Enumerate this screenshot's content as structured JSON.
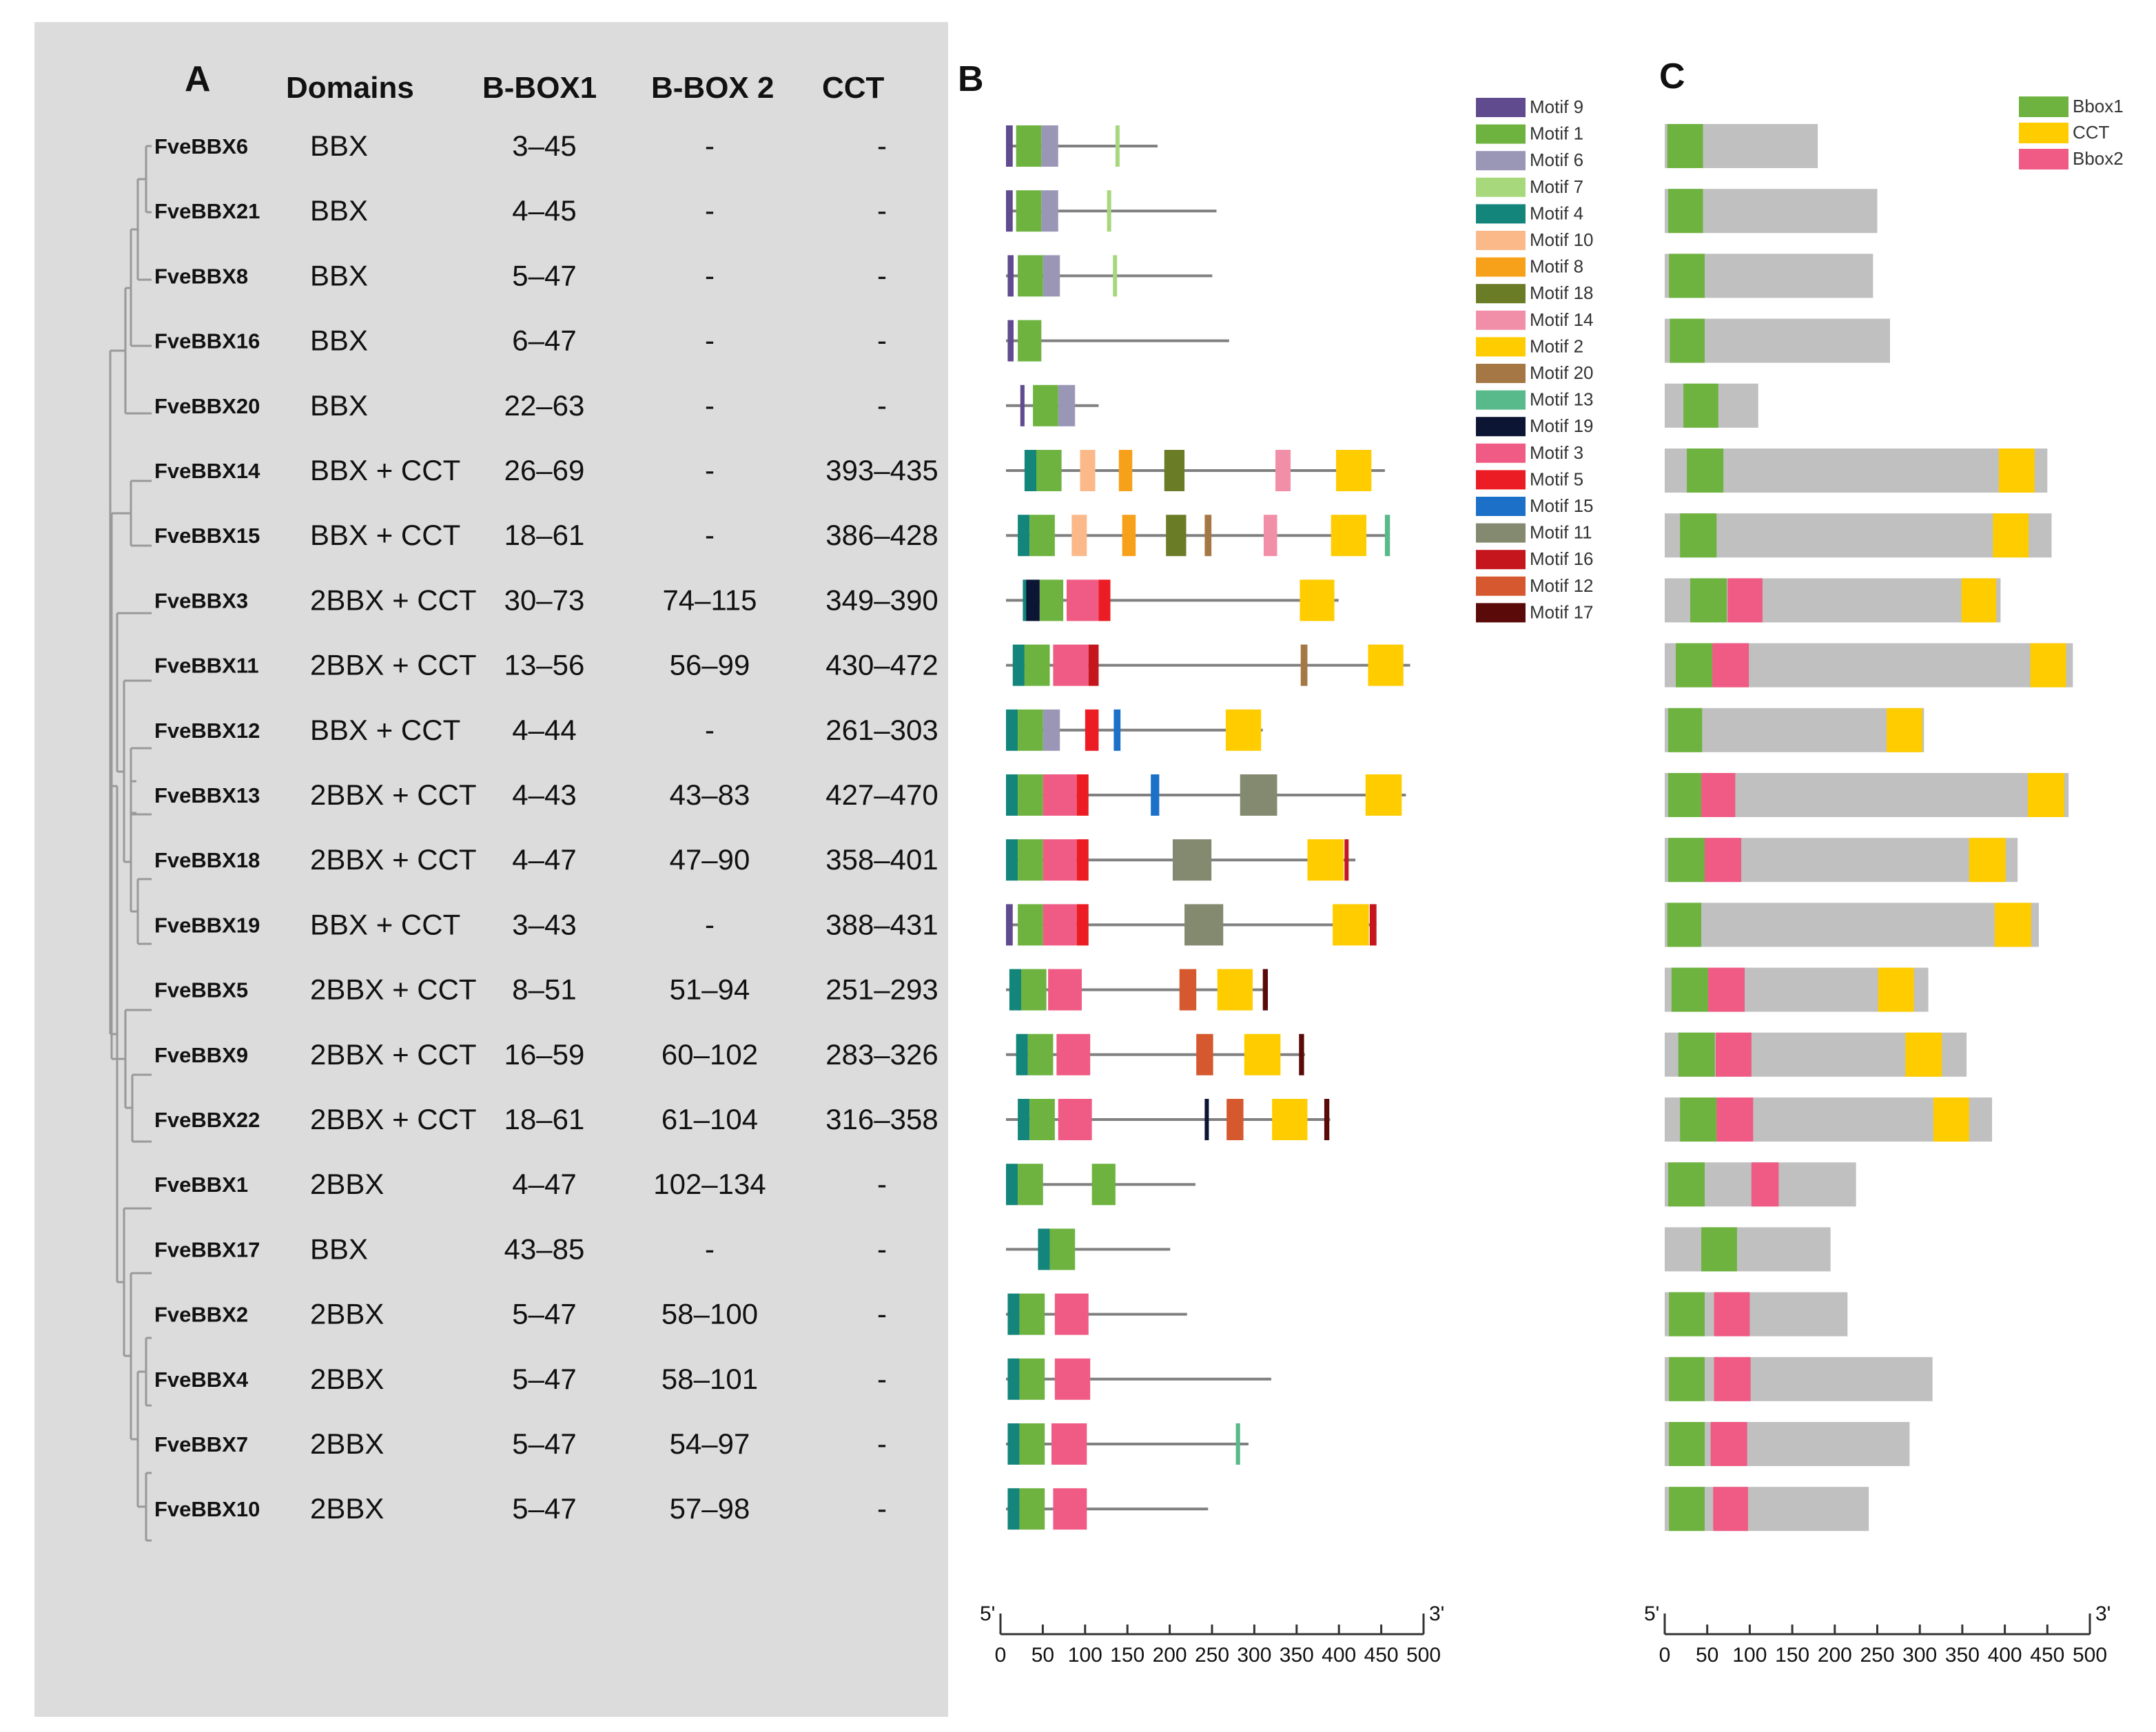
{
  "panels": {
    "a": "A",
    "b": "B",
    "c": "C"
  },
  "headers": {
    "domains": "Domains",
    "bbox1": "B-BOX1",
    "bbox2": "B-BOX 2",
    "cct": "CCT"
  },
  "colors": {
    "m1": "#6eb33f",
    "m2": "#ffcc00",
    "m3": "#ef5b84",
    "m4": "#14857a",
    "m5": "#ec1c24",
    "m6": "#9a97b6",
    "m7": "#a8d87c",
    "m8": "#f7a11a",
    "m9": "#604b8e",
    "m10": "#fbb98a",
    "m11": "#838a70",
    "m12": "#d6582e",
    "m13": "#58b98a",
    "m14": "#f28fa8",
    "m15": "#1c70c8",
    "m16": "#c5161d",
    "m17": "#5b0a0a",
    "m18": "#6b7c27",
    "m19": "#0d1535",
    "m20": "#a57745",
    "Bbox1": "#6eb33f",
    "CCT": "#ffcc00",
    "Bbox2": "#ef5b84",
    "bar": "#c0c0c0",
    "line": "#808080"
  },
  "motif_legend": [
    {
      "label": "Motif 9",
      "key": "m9"
    },
    {
      "label": "Motif 1",
      "key": "m1"
    },
    {
      "label": "Motif 6",
      "key": "m6"
    },
    {
      "label": "Motif 7",
      "key": "m7"
    },
    {
      "label": "Motif 4",
      "key": "m4"
    },
    {
      "label": "Motif 10",
      "key": "m10"
    },
    {
      "label": "Motif 8",
      "key": "m8"
    },
    {
      "label": "Motif 18",
      "key": "m18"
    },
    {
      "label": "Motif 14",
      "key": "m14"
    },
    {
      "label": "Motif 2",
      "key": "m2"
    },
    {
      "label": "Motif 20",
      "key": "m20"
    },
    {
      "label": "Motif 13",
      "key": "m13"
    },
    {
      "label": "Motif 19",
      "key": "m19"
    },
    {
      "label": "Motif 3",
      "key": "m3"
    },
    {
      "label": "Motif 5",
      "key": "m5"
    },
    {
      "label": "Motif 15",
      "key": "m15"
    },
    {
      "label": "Motif 11",
      "key": "m11"
    },
    {
      "label": "Motif 16",
      "key": "m16"
    },
    {
      "label": "Motif 12",
      "key": "m12"
    },
    {
      "label": "Motif 17",
      "key": "m17"
    }
  ],
  "domain_legend": [
    {
      "label": "Bbox1",
      "key": "Bbox1"
    },
    {
      "label": "CCT",
      "key": "CCT"
    },
    {
      "label": "Bbox2",
      "key": "Bbox2"
    }
  ],
  "axis": {
    "five_prime": "5'",
    "three_prime": "3'",
    "ticks": [
      0,
      50,
      100,
      150,
      200,
      250,
      300,
      350,
      400,
      450,
      500
    ],
    "tick_labels": [
      "0",
      "50",
      "100",
      "150",
      "200",
      "250",
      "300",
      "350",
      "400",
      "450",
      "500"
    ]
  },
  "rows": [
    {
      "gene": "FveBBX6",
      "domains": "BBX",
      "b1": "3–45",
      "b2": "-",
      "cct": "-",
      "len": 180,
      "motifs": [
        [
          "m9",
          0,
          8
        ],
        [
          "m1",
          12,
          42
        ],
        [
          "m6",
          42,
          62
        ],
        [
          "m7",
          130,
          134
        ]
      ],
      "dom": [
        [
          "Bbox1",
          3,
          45
        ]
      ]
    },
    {
      "gene": "FveBBX21",
      "domains": "BBX",
      "b1": "4–45",
      "b2": "-",
      "cct": "-",
      "len": 250,
      "motifs": [
        [
          "m9",
          0,
          8
        ],
        [
          "m1",
          12,
          42
        ],
        [
          "m6",
          42,
          62
        ],
        [
          "m7",
          120,
          124
        ]
      ],
      "dom": [
        [
          "Bbox1",
          4,
          45
        ]
      ]
    },
    {
      "gene": "FveBBX8",
      "domains": "BBX",
      "b1": "5–47",
      "b2": "-",
      "cct": "-",
      "len": 245,
      "motifs": [
        [
          "m9",
          2,
          9
        ],
        [
          "m1",
          14,
          44
        ],
        [
          "m6",
          44,
          64
        ],
        [
          "m7",
          127,
          131
        ]
      ],
      "dom": [
        [
          "Bbox1",
          5,
          47
        ]
      ]
    },
    {
      "gene": "FveBBX16",
      "domains": "BBX",
      "b1": "6–47",
      "b2": "-",
      "cct": "-",
      "len": 265,
      "motifs": [
        [
          "m9",
          2,
          9
        ],
        [
          "m1",
          14,
          42
        ]
      ],
      "dom": [
        [
          "Bbox1",
          6,
          47
        ]
      ]
    },
    {
      "gene": "FveBBX20",
      "domains": "BBX",
      "b1": "22–63",
      "b2": "-",
      "cct": "-",
      "len": 110,
      "motifs": [
        [
          "m9",
          17,
          22
        ],
        [
          "m1",
          32,
          62
        ],
        [
          "m6",
          62,
          82
        ]
      ],
      "dom": [
        [
          "Bbox1",
          22,
          63
        ]
      ]
    },
    {
      "gene": "FveBBX14",
      "domains": "BBX + CCT",
      "b1": "26–69",
      "b2": "-",
      "cct": "393–435",
      "len": 450,
      "motifs": [
        [
          "m4",
          22,
          36
        ],
        [
          "m1",
          36,
          66
        ],
        [
          "m10",
          88,
          106
        ],
        [
          "m8",
          134,
          150
        ],
        [
          "m18",
          188,
          212
        ],
        [
          "m14",
          320,
          338
        ],
        [
          "m2",
          392,
          434
        ]
      ],
      "dom": [
        [
          "Bbox1",
          26,
          69
        ],
        [
          "CCT",
          393,
          435
        ]
      ]
    },
    {
      "gene": "FveBBX15",
      "domains": "BBX + CCT",
      "b1": "18–61",
      "b2": "-",
      "cct": "386–428",
      "len": 455,
      "motifs": [
        [
          "m4",
          14,
          28
        ],
        [
          "m1",
          28,
          58
        ],
        [
          "m10",
          78,
          96
        ],
        [
          "m8",
          138,
          154
        ],
        [
          "m18",
          190,
          214
        ],
        [
          "m20",
          236,
          244
        ],
        [
          "m14",
          306,
          322
        ],
        [
          "m2",
          386,
          428
        ],
        [
          "m13",
          450,
          456
        ]
      ],
      "dom": [
        [
          "Bbox1",
          18,
          61
        ],
        [
          "CCT",
          386,
          428
        ]
      ]
    },
    {
      "gene": "FveBBX3",
      "domains": "2BBX + CCT",
      "b1": "30–73",
      "b2": "74–115",
      "cct": "349–390",
      "len": 395,
      "motifs": [
        [
          "m4",
          20,
          24
        ],
        [
          "m19",
          24,
          40
        ],
        [
          "m1",
          40,
          68
        ],
        [
          "m3",
          72,
          110
        ],
        [
          "m5",
          110,
          124
        ],
        [
          "m2",
          349,
          390
        ]
      ],
      "dom": [
        [
          "Bbox1",
          30,
          73
        ],
        [
          "Bbox2",
          74,
          115
        ],
        [
          "CCT",
          349,
          390
        ]
      ]
    },
    {
      "gene": "FveBBX11",
      "domains": "2BBX + CCT",
      "b1": "13–56",
      "b2": "56–99",
      "cct": "430–472",
      "len": 480,
      "motifs": [
        [
          "m4",
          8,
          22
        ],
        [
          "m1",
          22,
          52
        ],
        [
          "m3",
          56,
          98
        ],
        [
          "m16",
          98,
          110
        ],
        [
          "m20",
          350,
          358
        ],
        [
          "m2",
          430,
          472
        ]
      ],
      "dom": [
        [
          "Bbox1",
          13,
          56
        ],
        [
          "Bbox2",
          56,
          99
        ],
        [
          "CCT",
          430,
          472
        ]
      ]
    },
    {
      "gene": "FveBBX12",
      "domains": "BBX + CCT",
      "b1": "4–44",
      "b2": "-",
      "cct": "261–303",
      "len": 305,
      "motifs": [
        [
          "m4",
          0,
          14
        ],
        [
          "m1",
          14,
          44
        ],
        [
          "m6",
          44,
          64
        ],
        [
          "m5",
          94,
          110
        ],
        [
          "m15",
          128,
          136
        ],
        [
          "m2",
          261,
          303
        ]
      ],
      "dom": [
        [
          "Bbox1",
          4,
          44
        ],
        [
          "CCT",
          261,
          303
        ]
      ]
    },
    {
      "gene": "FveBBX13",
      "domains": "2BBX + CCT",
      "b1": "4–43",
      "b2": "43–83",
      "cct": "427–470",
      "len": 475,
      "motifs": [
        [
          "m4",
          0,
          14
        ],
        [
          "m1",
          14,
          44
        ],
        [
          "m3",
          44,
          84
        ],
        [
          "m5",
          84,
          98
        ],
        [
          "m15",
          172,
          182
        ],
        [
          "m11",
          278,
          322
        ],
        [
          "m2",
          427,
          470
        ]
      ],
      "dom": [
        [
          "Bbox1",
          4,
          43
        ],
        [
          "Bbox2",
          43,
          83
        ],
        [
          "CCT",
          427,
          470
        ]
      ]
    },
    {
      "gene": "FveBBX18",
      "domains": "2BBX + CCT",
      "b1": "4–47",
      "b2": "47–90",
      "cct": "358–401",
      "len": 415,
      "motifs": [
        [
          "m4",
          0,
          14
        ],
        [
          "m1",
          14,
          44
        ],
        [
          "m3",
          44,
          84
        ],
        [
          "m5",
          84,
          98
        ],
        [
          "m11",
          198,
          244
        ],
        [
          "m2",
          358,
          401
        ],
        [
          "m16",
          402,
          406
        ]
      ],
      "dom": [
        [
          "Bbox1",
          4,
          47
        ],
        [
          "Bbox2",
          47,
          90
        ],
        [
          "CCT",
          358,
          401
        ]
      ]
    },
    {
      "gene": "FveBBX19",
      "domains": "BBX + CCT",
      "b1": "3–43",
      "b2": "-",
      "cct": "388–431",
      "len": 440,
      "motifs": [
        [
          "m9",
          0,
          8
        ],
        [
          "m1",
          14,
          44
        ],
        [
          "m3",
          44,
          84
        ],
        [
          "m5",
          84,
          98
        ],
        [
          "m11",
          212,
          258
        ],
        [
          "m2",
          388,
          431
        ],
        [
          "m16",
          432,
          440
        ]
      ],
      "dom": [
        [
          "Bbox1",
          3,
          43
        ],
        [
          "CCT",
          388,
          431
        ]
      ]
    },
    {
      "gene": "FveBBX5",
      "domains": "2BBX + CCT",
      "b1": "8–51",
      "b2": "51–94",
      "cct": "251–293",
      "len": 310,
      "motifs": [
        [
          "m4",
          4,
          18
        ],
        [
          "m1",
          18,
          48
        ],
        [
          "m3",
          50,
          90
        ],
        [
          "m12",
          206,
          226
        ],
        [
          "m2",
          251,
          293
        ],
        [
          "m17",
          305,
          311
        ]
      ],
      "dom": [
        [
          "Bbox1",
          8,
          51
        ],
        [
          "Bbox2",
          51,
          94
        ],
        [
          "CCT",
          251,
          293
        ]
      ]
    },
    {
      "gene": "FveBBX9",
      "domains": "2BBX + CCT",
      "b1": "16–59",
      "b2": "60–102",
      "cct": "283–326",
      "len": 355,
      "motifs": [
        [
          "m4",
          12,
          26
        ],
        [
          "m1",
          26,
          56
        ],
        [
          "m3",
          60,
          100
        ],
        [
          "m12",
          226,
          246
        ],
        [
          "m2",
          283,
          326
        ],
        [
          "m17",
          348,
          354
        ]
      ],
      "dom": [
        [
          "Bbox1",
          16,
          59
        ],
        [
          "Bbox2",
          60,
          102
        ],
        [
          "CCT",
          283,
          326
        ]
      ]
    },
    {
      "gene": "FveBBX22",
      "domains": "2BBX + CCT",
      "b1": "18–61",
      "b2": "61–104",
      "cct": "316–358",
      "len": 385,
      "motifs": [
        [
          "m4",
          14,
          28
        ],
        [
          "m1",
          28,
          58
        ],
        [
          "m3",
          62,
          102
        ],
        [
          "m19",
          236,
          240
        ],
        [
          "m12",
          262,
          282
        ],
        [
          "m2",
          316,
          358
        ],
        [
          "m17",
          378,
          384
        ]
      ],
      "dom": [
        [
          "Bbox1",
          18,
          61
        ],
        [
          "Bbox2",
          61,
          104
        ],
        [
          "CCT",
          316,
          358
        ]
      ]
    },
    {
      "gene": "FveBBX1",
      "domains": "2BBX",
      "b1": "4–47",
      "b2": "102–134",
      "cct": "-",
      "len": 225,
      "motifs": [
        [
          "m4",
          0,
          14
        ],
        [
          "m1",
          14,
          44
        ],
        [
          "m1",
          102,
          130
        ]
      ],
      "dom": [
        [
          "Bbox1",
          4,
          47
        ],
        [
          "Bbox2",
          102,
          134
        ]
      ]
    },
    {
      "gene": "FveBBX17",
      "domains": "BBX",
      "b1": "43–85",
      "b2": "-",
      "cct": "-",
      "len": 195,
      "motifs": [
        [
          "m4",
          38,
          52
        ],
        [
          "m1",
          52,
          82
        ]
      ],
      "dom": [
        [
          "Bbox1",
          43,
          85
        ]
      ]
    },
    {
      "gene": "FveBBX2",
      "domains": "2BBX",
      "b1": "5–47",
      "b2": "58–100",
      "cct": "-",
      "len": 215,
      "motifs": [
        [
          "m4",
          2,
          16
        ],
        [
          "m1",
          16,
          46
        ],
        [
          "m3",
          58,
          98
        ]
      ],
      "dom": [
        [
          "Bbox1",
          5,
          47
        ],
        [
          "Bbox2",
          58,
          100
        ]
      ]
    },
    {
      "gene": "FveBBX4",
      "domains": "2BBX",
      "b1": "5–47",
      "b2": "58–101",
      "cct": "-",
      "len": 315,
      "motifs": [
        [
          "m4",
          2,
          16
        ],
        [
          "m1",
          16,
          46
        ],
        [
          "m3",
          58,
          100
        ]
      ],
      "dom": [
        [
          "Bbox1",
          5,
          47
        ],
        [
          "Bbox2",
          58,
          101
        ]
      ]
    },
    {
      "gene": "FveBBX7",
      "domains": "2BBX",
      "b1": "5–47",
      "b2": "54–97",
      "cct": "-",
      "len": 288,
      "motifs": [
        [
          "m4",
          2,
          16
        ],
        [
          "m1",
          16,
          46
        ],
        [
          "m3",
          54,
          96
        ],
        [
          "m13",
          273,
          278
        ]
      ],
      "dom": [
        [
          "Bbox1",
          5,
          47
        ],
        [
          "Bbox2",
          54,
          97
        ]
      ]
    },
    {
      "gene": "FveBBX10",
      "domains": "2BBX",
      "b1": "5–47",
      "b2": "57–98",
      "cct": "-",
      "len": 240,
      "motifs": [
        [
          "m4",
          2,
          16
        ],
        [
          "m1",
          16,
          46
        ],
        [
          "m3",
          56,
          96
        ]
      ],
      "dom": [
        [
          "Bbox1",
          5,
          47
        ],
        [
          "Bbox2",
          57,
          98
        ]
      ]
    }
  ]
}
